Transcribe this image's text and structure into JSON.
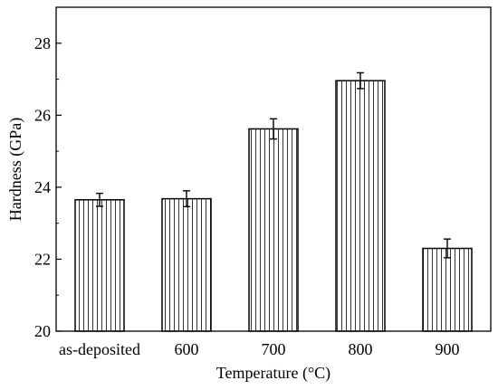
{
  "chart_data": {
    "type": "bar",
    "title": "",
    "xlabel": "Temperature (°C)",
    "ylabel": "Hardness (GPa)",
    "categories": [
      "as-deposited",
      "600",
      "700",
      "800",
      "900"
    ],
    "values": [
      23.65,
      23.68,
      25.62,
      26.96,
      22.3
    ],
    "errors": [
      0.18,
      0.22,
      0.28,
      0.22,
      0.26
    ],
    "ylim": [
      20,
      29
    ],
    "yticks": [
      20,
      22,
      24,
      26,
      28
    ],
    "ytick_labels": [
      "20",
      "22",
      "24",
      "26",
      "28"
    ],
    "grid": false,
    "legend": "none",
    "bar_fill": "vertical-hatch",
    "colors": {
      "stroke": "#000000",
      "background": "#ffffff"
    }
  }
}
